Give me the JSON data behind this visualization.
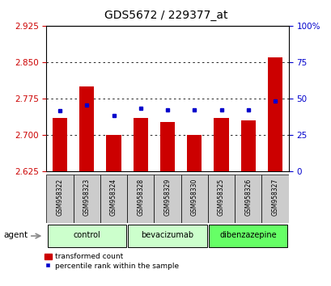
{
  "title": "GDS5672 / 229377_at",
  "samples": [
    "GSM958322",
    "GSM958323",
    "GSM958324",
    "GSM958328",
    "GSM958329",
    "GSM958330",
    "GSM958325",
    "GSM958326",
    "GSM958327"
  ],
  "red_values": [
    2.735,
    2.8,
    2.7,
    2.735,
    2.727,
    2.7,
    2.735,
    2.73,
    2.86
  ],
  "blue_values": [
    2.75,
    2.762,
    2.74,
    2.755,
    2.752,
    2.752,
    2.752,
    2.752,
    2.77
  ],
  "ylim_left": [
    2.625,
    2.925
  ],
  "ylim_right": [
    0,
    100
  ],
  "yticks_left": [
    2.625,
    2.7,
    2.775,
    2.85,
    2.925
  ],
  "yticks_right": [
    0,
    25,
    50,
    75,
    100
  ],
  "ytick_labels_right": [
    "0",
    "25",
    "50",
    "75",
    "100%"
  ],
  "baseline": 2.625,
  "groups": [
    {
      "label": "control",
      "span": [
        0,
        2
      ],
      "color": "#ccffcc"
    },
    {
      "label": "bevacizumab",
      "span": [
        3,
        5
      ],
      "color": "#ccffcc"
    },
    {
      "label": "dibenzazepine",
      "span": [
        6,
        8
      ],
      "color": "#66ff66"
    }
  ],
  "bar_color": "#cc0000",
  "blue_color": "#0000cc",
  "bar_width": 0.55,
  "left_tick_color": "#cc0000",
  "right_tick_color": "#0000cc",
  "agent_label": "agent",
  "legend_red": "transformed count",
  "legend_blue": "percentile rank within the sample",
  "sample_bg": "#cccccc",
  "plot_bg": "#ffffff"
}
